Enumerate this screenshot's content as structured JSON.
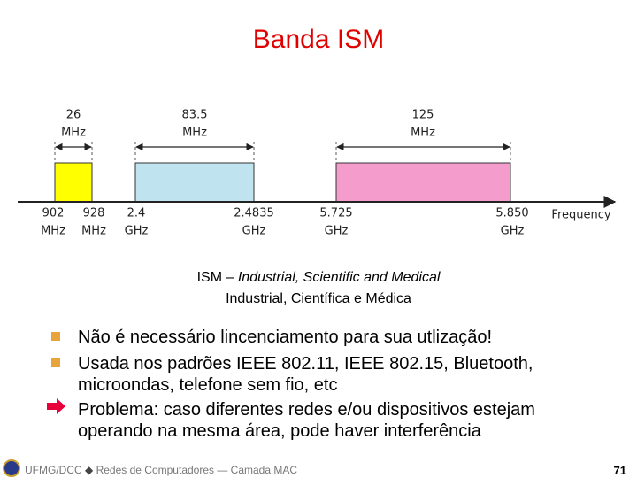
{
  "header": {
    "title": "Banda ISM"
  },
  "diagram": {
    "bands": [
      {
        "width": [
          "26",
          "MHz"
        ],
        "start": [
          "902",
          "MHz"
        ],
        "end": [
          "928",
          "MHz"
        ]
      },
      {
        "width": [
          "83.5",
          "MHz"
        ],
        "start": [
          "2.4",
          "GHz"
        ],
        "end": [
          "2.4835",
          "GHz"
        ]
      },
      {
        "width": [
          "125",
          "MHz"
        ],
        "start": [
          "5.725",
          "GHz"
        ],
        "end": [
          "5.850",
          "GHz"
        ]
      }
    ],
    "axis_label": "Frequency"
  },
  "caption": {
    "prefix": "ISM –",
    "english": "Industrial, Scientific and Medical",
    "portuguese": "Industrial, Científica e Médica"
  },
  "bullets": [
    "Não é necessário lincenciamento para sua utlização!",
    "Usada nos padrões IEEE 802.11, IEEE 802.15, Bluetooth, microondas, telefone sem fio, etc",
    "Problema: caso diferentes redes e/ou dispositivos estejam operando na mesma área, pode haver interferência"
  ],
  "footer": {
    "institution": "UFMG/DCC",
    "course": "Redes de Computadores — Camada MAC",
    "page": "71"
  }
}
